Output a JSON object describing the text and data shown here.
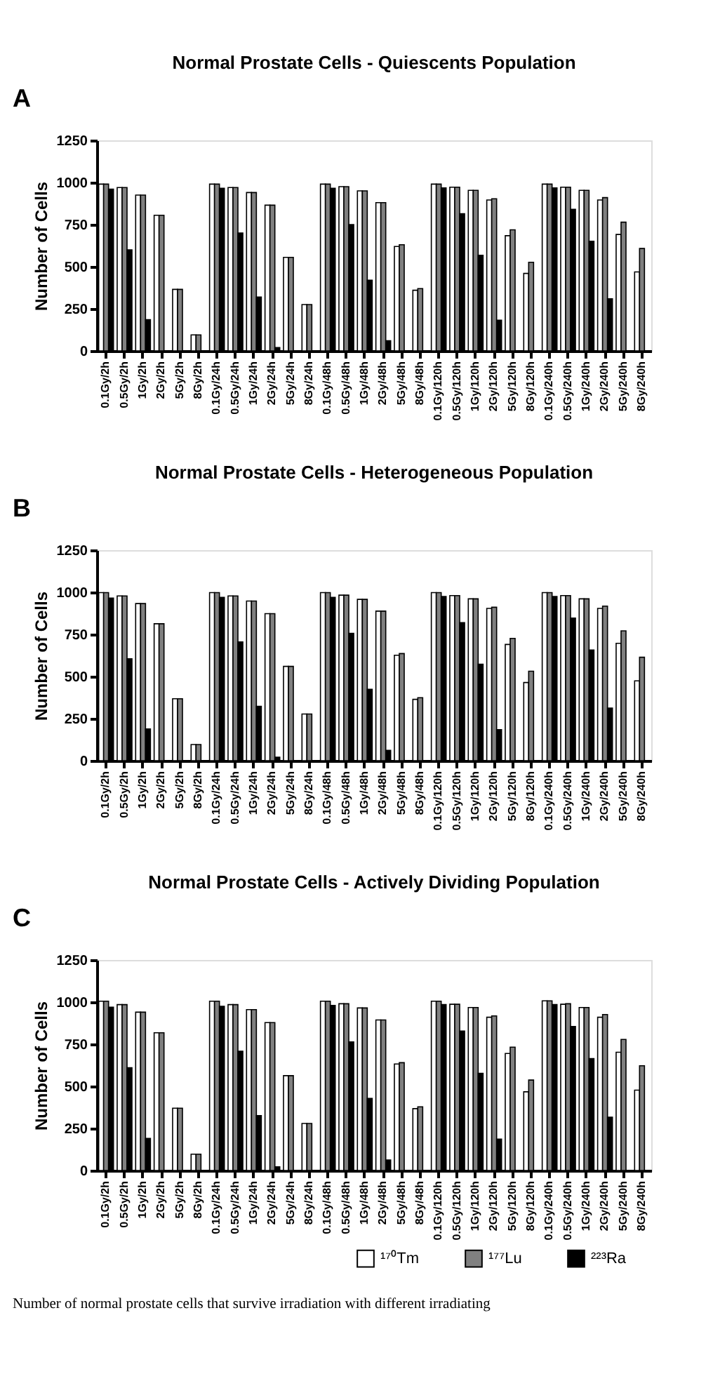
{
  "chart_data": [
    {
      "type": "bar",
      "title": "Normal Prostate Cells - Quiescents Population",
      "ylabel": "Number of Cells",
      "annotations": [
        "A"
      ],
      "categories": [
        "0.1Gy/2h",
        "0.5Gy/2h",
        "1Gy/2h",
        "2Gy/2h",
        "5Gy/2h",
        "8Gy/2h",
        "0.1Gy/24h",
        "0.5Gy/24h",
        "1Gy/24h",
        "2Gy/24h",
        "5Gy/24h",
        "8Gy/24h",
        "0.1Gy/48h",
        "0.5Gy/48h",
        "1Gy/48h",
        "2Gy/48h",
        "5Gy/48h",
        "8Gy/48h",
        "0.1Gy/120h",
        "0.5Gy/120h",
        "1Gy/120h",
        "2Gy/120h",
        "5Gy/120h",
        "8Gy/120h",
        "0.1Gy/240h",
        "0.5Gy/240h",
        "1Gy/240h",
        "2Gy/240h",
        "5Gy/240h",
        "8Gy/240h"
      ],
      "series": [
        {
          "color": "#ffffff",
          "values": [
            990,
            970,
            925,
            805,
            365,
            95,
            990,
            970,
            940,
            865,
            555,
            275,
            990,
            975,
            950,
            880,
            620,
            360,
            990,
            972,
            953,
            896,
            684,
            460,
            990,
            972,
            953,
            896,
            691,
            469
          ]
        },
        {
          "color": "#808080",
          "values": [
            990,
            970,
            925,
            805,
            365,
            95,
            990,
            970,
            940,
            865,
            555,
            275,
            990,
            975,
            950,
            880,
            630,
            370,
            990,
            972,
            953,
            903,
            719,
            526,
            990,
            972,
            953,
            910,
            764,
            608
          ]
        },
        {
          "color": "#000000",
          "values": [
            960,
            600,
            185,
            0,
            0,
            0,
            965,
            700,
            320,
            20,
            0,
            0,
            965,
            750,
            420,
            60,
            0,
            0,
            967,
            814,
            568,
            182,
            0,
            0,
            967,
            840,
            651,
            309,
            0,
            0
          ]
        }
      ],
      "ylim": [
        0,
        1250
      ],
      "yticks": [
        0,
        250,
        500,
        750,
        1000,
        1250
      ],
      "grid": false,
      "legend": false
    },
    {
      "type": "bar",
      "title": "Normal Prostate Cells - Heterogeneous Population",
      "ylabel": "Number of Cells",
      "annotations": [
        "B"
      ],
      "categories": [
        "0.1Gy/2h",
        "0.5Gy/2h",
        "1Gy/2h",
        "2Gy/2h",
        "5Gy/2h",
        "8Gy/2h",
        "0.1Gy/24h",
        "0.5Gy/24h",
        "1Gy/24h",
        "2Gy/24h",
        "5Gy/24h",
        "8Gy/24h",
        "0.1Gy/48h",
        "0.5Gy/48h",
        "1Gy/48h",
        "2Gy/48h",
        "5Gy/48h",
        "8Gy/48h",
        "0.1Gy/120h",
        "0.5Gy/120h",
        "1Gy/120h",
        "2Gy/120h",
        "5Gy/120h",
        "8Gy/120h",
        "0.1Gy/240h",
        "0.5Gy/240h",
        "1Gy/240h",
        "2Gy/240h",
        "5Gy/240h",
        "8Gy/240h"
      ],
      "series": [
        {
          "color": "#ffffff",
          "values": [
            998,
            978,
            933,
            813,
            368,
            96,
            998,
            978,
            948,
            873,
            560,
            277,
            998,
            983,
            958,
            888,
            626,
            364,
            998,
            980,
            961,
            904,
            690,
            464,
            998,
            980,
            961,
            904,
            697,
            474
          ]
        },
        {
          "color": "#808080",
          "values": [
            998,
            978,
            933,
            813,
            368,
            96,
            998,
            978,
            948,
            873,
            560,
            277,
            998,
            983,
            958,
            888,
            636,
            374,
            998,
            980,
            961,
            911,
            726,
            531,
            998,
            980,
            961,
            918,
            771,
            614
          ]
        },
        {
          "color": "#000000",
          "values": [
            965,
            605,
            188,
            0,
            0,
            0,
            970,
            705,
            323,
            21,
            0,
            0,
            970,
            756,
            424,
            61,
            0,
            0,
            975,
            820,
            573,
            184,
            0,
            0,
            975,
            847,
            657,
            312,
            0,
            0
          ]
        }
      ],
      "ylim": [
        0,
        1250
      ],
      "yticks": [
        0,
        250,
        500,
        750,
        1000,
        1250
      ],
      "grid": false,
      "legend": false
    },
    {
      "type": "bar",
      "title": "Normal Prostate Cells - Actively Dividing Population",
      "ylabel": "Number of Cells",
      "annotations": [
        "C",
        "Number of normal prostate cells that survive irradiation with different irradiating"
      ],
      "categories": [
        "0.1Gy/2h",
        "0.5Gy/2h",
        "1Gy/2h",
        "2Gy/2h",
        "5Gy/2h",
        "8Gy/2h",
        "0.1Gy/24h",
        "0.5Gy/24h",
        "1Gy/24h",
        "2Gy/24h",
        "5Gy/24h",
        "8Gy/24h",
        "0.1Gy/48h",
        "0.5Gy/48h",
        "1Gy/48h",
        "2Gy/48h",
        "5Gy/48h",
        "8Gy/48h",
        "0.1Gy/120h",
        "0.5Gy/120h",
        "1Gy/120h",
        "2Gy/120h",
        "5Gy/120h",
        "8Gy/120h",
        "0.1Gy/240h",
        "0.5Gy/240h",
        "1Gy/240h",
        "2Gy/240h",
        "5Gy/240h",
        "8Gy/240h"
      ],
      "series": [
        {
          "name": "¹⁷⁰Tm",
          "color": "#ffffff",
          "values": [
            1005,
            985,
            940,
            818,
            370,
            97,
            1005,
            985,
            955,
            878,
            563,
            279,
            1005,
            990,
            965,
            894,
            632,
            367,
            1005,
            987,
            968,
            910,
            695,
            467,
            1007,
            987,
            968,
            910,
            702,
            477
          ]
        },
        {
          "name": "¹⁷⁷Lu",
          "color": "#808080",
          "values": [
            1005,
            985,
            940,
            818,
            370,
            97,
            1005,
            985,
            955,
            878,
            563,
            279,
            1005,
            990,
            965,
            894,
            640,
            378,
            1005,
            987,
            968,
            918,
            732,
            537,
            1007,
            990,
            968,
            926,
            778,
            622
          ]
        },
        {
          "name": "²²³Ra",
          "color": "#000000",
          "values": [
            970,
            610,
            190,
            0,
            0,
            0,
            975,
            708,
            326,
            22,
            0,
            0,
            980,
            763,
            428,
            62,
            0,
            0,
            985,
            828,
            577,
            186,
            0,
            0,
            985,
            855,
            664,
            316,
            0,
            0
          ]
        }
      ],
      "ylim": [
        0,
        1250
      ],
      "yticks": [
        0,
        250,
        500,
        750,
        1000,
        1250
      ],
      "grid": false,
      "legend": "bottom right"
    }
  ]
}
